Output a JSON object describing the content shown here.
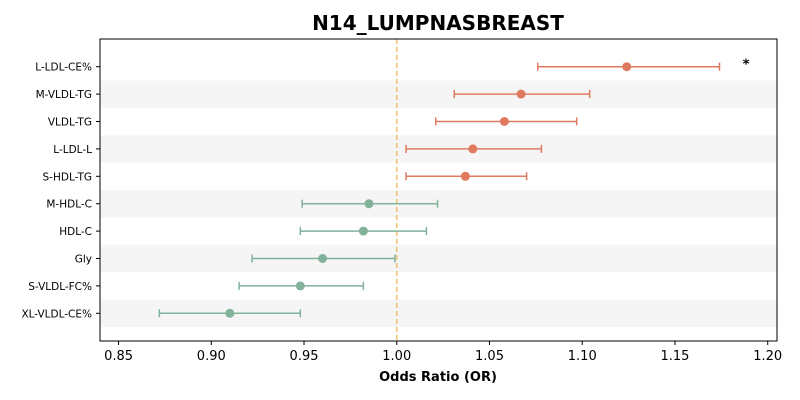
{
  "chart_data": {
    "type": "scatter",
    "subtype": "forest-plot",
    "title": "N14_LUMPNASBREAST",
    "xlabel": "Odds Ratio (OR)",
    "ylabel": "",
    "xlim": [
      0.84,
      1.205
    ],
    "xticks": [
      "0.85",
      "0.90",
      "0.95",
      "1.00",
      "1.05",
      "1.10",
      "1.15",
      "1.20"
    ],
    "xtick_values": [
      0.85,
      0.9,
      0.95,
      1.0,
      1.05,
      1.1,
      1.15,
      1.2
    ],
    "reference_line": 1.0,
    "reference_color": "#f0c070",
    "band_color": "#f5f5f5",
    "colors": {
      "positive": "#e07a5f",
      "negative": "#81b29a"
    },
    "rows": [
      {
        "label": "L-LDL-CE%",
        "or": 1.124,
        "lo": 1.076,
        "hi": 1.174,
        "direction": "positive",
        "annotation": "*"
      },
      {
        "label": "M-VLDL-TG",
        "or": 1.067,
        "lo": 1.031,
        "hi": 1.104,
        "direction": "positive",
        "annotation": ""
      },
      {
        "label": "VLDL-TG",
        "or": 1.058,
        "lo": 1.021,
        "hi": 1.097,
        "direction": "positive",
        "annotation": ""
      },
      {
        "label": "L-LDL-L",
        "or": 1.041,
        "lo": 1.005,
        "hi": 1.078,
        "direction": "positive",
        "annotation": ""
      },
      {
        "label": "S-HDL-TG",
        "or": 1.037,
        "lo": 1.005,
        "hi": 1.07,
        "direction": "positive",
        "annotation": ""
      },
      {
        "label": "M-HDL-C",
        "or": 0.985,
        "lo": 0.949,
        "hi": 1.022,
        "direction": "negative",
        "annotation": ""
      },
      {
        "label": "HDL-C",
        "or": 0.982,
        "lo": 0.948,
        "hi": 1.016,
        "direction": "negative",
        "annotation": ""
      },
      {
        "label": "Gly",
        "or": 0.96,
        "lo": 0.922,
        "hi": 0.999,
        "direction": "negative",
        "annotation": ""
      },
      {
        "label": "S-VLDL-FC%",
        "or": 0.948,
        "lo": 0.915,
        "hi": 0.982,
        "direction": "negative",
        "annotation": ""
      },
      {
        "label": "XL-VLDL-CE%",
        "or": 0.91,
        "lo": 0.872,
        "hi": 0.948,
        "direction": "negative",
        "annotation": ""
      }
    ],
    "grid": false,
    "legend": "none"
  }
}
